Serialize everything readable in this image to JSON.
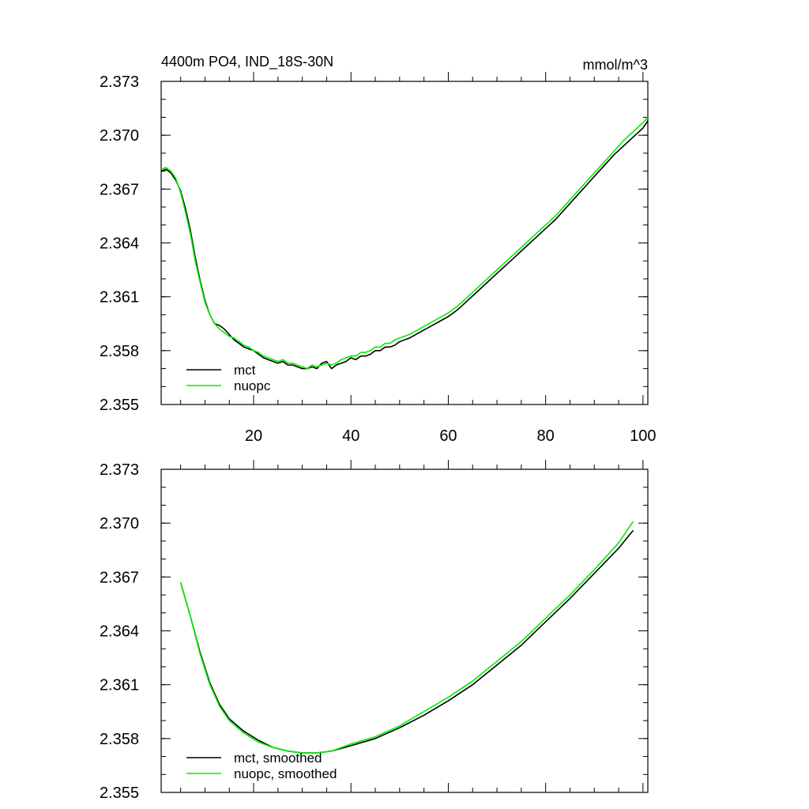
{
  "chart_data": [
    {
      "type": "line",
      "title_left": "4400m PO4, IND_18S-30N",
      "title_right": "mmol/m^3",
      "xlim": [
        1,
        101
      ],
      "ylim": [
        2.355,
        2.373
      ],
      "x_ticks": [
        20,
        40,
        60,
        80,
        100
      ],
      "x_tick_labels": [
        "20",
        "40",
        "60",
        "80",
        "100"
      ],
      "y_ticks": [
        2.355,
        2.358,
        2.361,
        2.364,
        2.367,
        2.37,
        2.373
      ],
      "y_tick_labels": [
        "2.355",
        "2.358",
        "2.361",
        "2.364",
        "2.367",
        "2.370",
        "2.373"
      ],
      "legend": {
        "position": "bottom-left",
        "entries": [
          "mct",
          "nuopc"
        ]
      },
      "series": [
        {
          "name": "mct",
          "color": "#000000",
          "x": [
            1,
            2,
            3,
            4,
            5,
            6,
            7,
            8,
            9,
            10,
            11,
            12,
            13,
            14,
            15,
            16,
            17,
            18,
            19,
            20,
            21,
            22,
            23,
            24,
            25,
            26,
            27,
            28,
            29,
            30,
            31,
            32,
            33,
            34,
            35,
            36,
            37,
            38,
            39,
            40,
            41,
            42,
            43,
            44,
            45,
            46,
            47,
            48,
            49,
            50,
            52,
            54,
            56,
            58,
            60,
            62,
            64,
            66,
            68,
            70,
            72,
            74,
            76,
            78,
            80,
            82,
            84,
            86,
            88,
            90,
            92,
            94,
            96,
            98,
            100,
            101
          ],
          "values": [
            2.368,
            2.3681,
            2.3679,
            2.3675,
            2.3669,
            2.3659,
            2.3647,
            2.3632,
            2.3619,
            2.3608,
            2.36,
            2.3595,
            2.3594,
            2.3592,
            2.3589,
            2.3586,
            2.3584,
            2.3582,
            2.3581,
            2.358,
            2.3578,
            2.3576,
            2.3575,
            2.3574,
            2.3573,
            2.3574,
            2.3572,
            2.3572,
            2.3571,
            2.357,
            2.357,
            2.3571,
            2.357,
            2.3573,
            2.3574,
            2.357,
            2.3572,
            2.3573,
            2.3574,
            2.3576,
            2.3575,
            2.3577,
            2.3577,
            2.3578,
            2.358,
            2.358,
            2.3582,
            2.3582,
            2.3583,
            2.3585,
            2.3587,
            2.359,
            2.3593,
            2.3596,
            2.3599,
            2.3603,
            2.3608,
            2.3613,
            2.3618,
            2.3623,
            2.3628,
            2.3633,
            2.3638,
            2.3643,
            2.3648,
            2.3653,
            2.3659,
            2.3665,
            2.3671,
            2.3677,
            2.3683,
            2.3689,
            2.3694,
            2.3699,
            2.3704,
            2.3708
          ]
        },
        {
          "name": "nuopc",
          "color": "#00ee00",
          "x": [
            1,
            2,
            3,
            4,
            5,
            6,
            7,
            8,
            9,
            10,
            11,
            12,
            13,
            14,
            15,
            16,
            17,
            18,
            19,
            20,
            21,
            22,
            23,
            24,
            25,
            26,
            27,
            28,
            29,
            30,
            31,
            32,
            33,
            34,
            35,
            36,
            37,
            38,
            39,
            40,
            41,
            42,
            43,
            44,
            45,
            46,
            47,
            48,
            49,
            50,
            52,
            54,
            56,
            58,
            60,
            62,
            64,
            66,
            68,
            70,
            72,
            74,
            76,
            78,
            80,
            82,
            84,
            86,
            88,
            90,
            92,
            94,
            96,
            98,
            100,
            101
          ],
          "values": [
            2.3681,
            2.3682,
            2.368,
            2.3676,
            2.3668,
            2.3657,
            2.3645,
            2.363,
            2.3618,
            2.3607,
            2.36,
            2.3595,
            2.3592,
            2.359,
            2.3588,
            2.3587,
            2.3585,
            2.3583,
            2.3582,
            2.358,
            2.3579,
            2.3577,
            2.3576,
            2.3575,
            2.3574,
            2.3575,
            2.3573,
            2.3573,
            2.3572,
            2.3571,
            2.357,
            2.3572,
            2.3571,
            2.3572,
            2.3573,
            2.3572,
            2.3573,
            2.3575,
            2.3576,
            2.3577,
            2.3577,
            2.3579,
            2.3579,
            2.358,
            2.3582,
            2.3582,
            2.3584,
            2.3584,
            2.3586,
            2.3587,
            2.3589,
            2.3592,
            2.3595,
            2.3598,
            2.3601,
            2.3605,
            2.361,
            2.3615,
            2.362,
            2.3625,
            2.363,
            2.3635,
            2.364,
            2.3645,
            2.365,
            2.3655,
            2.3661,
            2.3667,
            2.3673,
            2.3679,
            2.3685,
            2.3691,
            2.3697,
            2.3702,
            2.3707,
            2.371
          ]
        }
      ]
    },
    {
      "type": "line",
      "xlim": [
        1,
        101
      ],
      "ylim": [
        2.355,
        2.373
      ],
      "x_ticks": [
        20,
        40,
        60,
        80,
        100
      ],
      "y_ticks": [
        2.355,
        2.358,
        2.361,
        2.364,
        2.367,
        2.37,
        2.373
      ],
      "y_tick_labels": [
        "2.355",
        "2.358",
        "2.361",
        "2.364",
        "2.367",
        "2.370",
        "2.373"
      ],
      "legend": {
        "position": "bottom-left",
        "entries": [
          "mct, smoothed",
          "nuopc, smoothed"
        ]
      },
      "series": [
        {
          "name": "mct, smoothed",
          "color": "#000000",
          "x": [
            5,
            7,
            9,
            11,
            13,
            15,
            18,
            21,
            24,
            27,
            30,
            33,
            36,
            40,
            45,
            50,
            55,
            60,
            65,
            70,
            75,
            80,
            85,
            90,
            95,
            98
          ],
          "values": [
            2.3667,
            2.3648,
            2.3628,
            2.3611,
            2.3599,
            2.3591,
            2.3584,
            2.3579,
            2.3575,
            2.3573,
            2.3572,
            2.3572,
            2.3573,
            2.3576,
            2.358,
            2.3586,
            2.3593,
            2.3601,
            2.361,
            2.3621,
            2.3632,
            2.3645,
            2.3658,
            2.3672,
            2.3686,
            2.3696
          ]
        },
        {
          "name": "nuopc, smoothed",
          "color": "#00ee00",
          "x": [
            5,
            7,
            9,
            11,
            13,
            15,
            18,
            21,
            24,
            27,
            30,
            33,
            36,
            40,
            45,
            50,
            55,
            60,
            65,
            70,
            75,
            80,
            85,
            90,
            95,
            98
          ],
          "values": [
            2.3667,
            2.3648,
            2.3627,
            2.361,
            2.3598,
            2.359,
            2.3583,
            2.3578,
            2.3575,
            2.3573,
            2.3572,
            2.3572,
            2.3573,
            2.3577,
            2.3581,
            2.3587,
            2.3595,
            2.3603,
            2.3612,
            2.3623,
            2.3634,
            2.3647,
            2.366,
            2.3674,
            2.3689,
            2.3701
          ]
        }
      ]
    }
  ]
}
